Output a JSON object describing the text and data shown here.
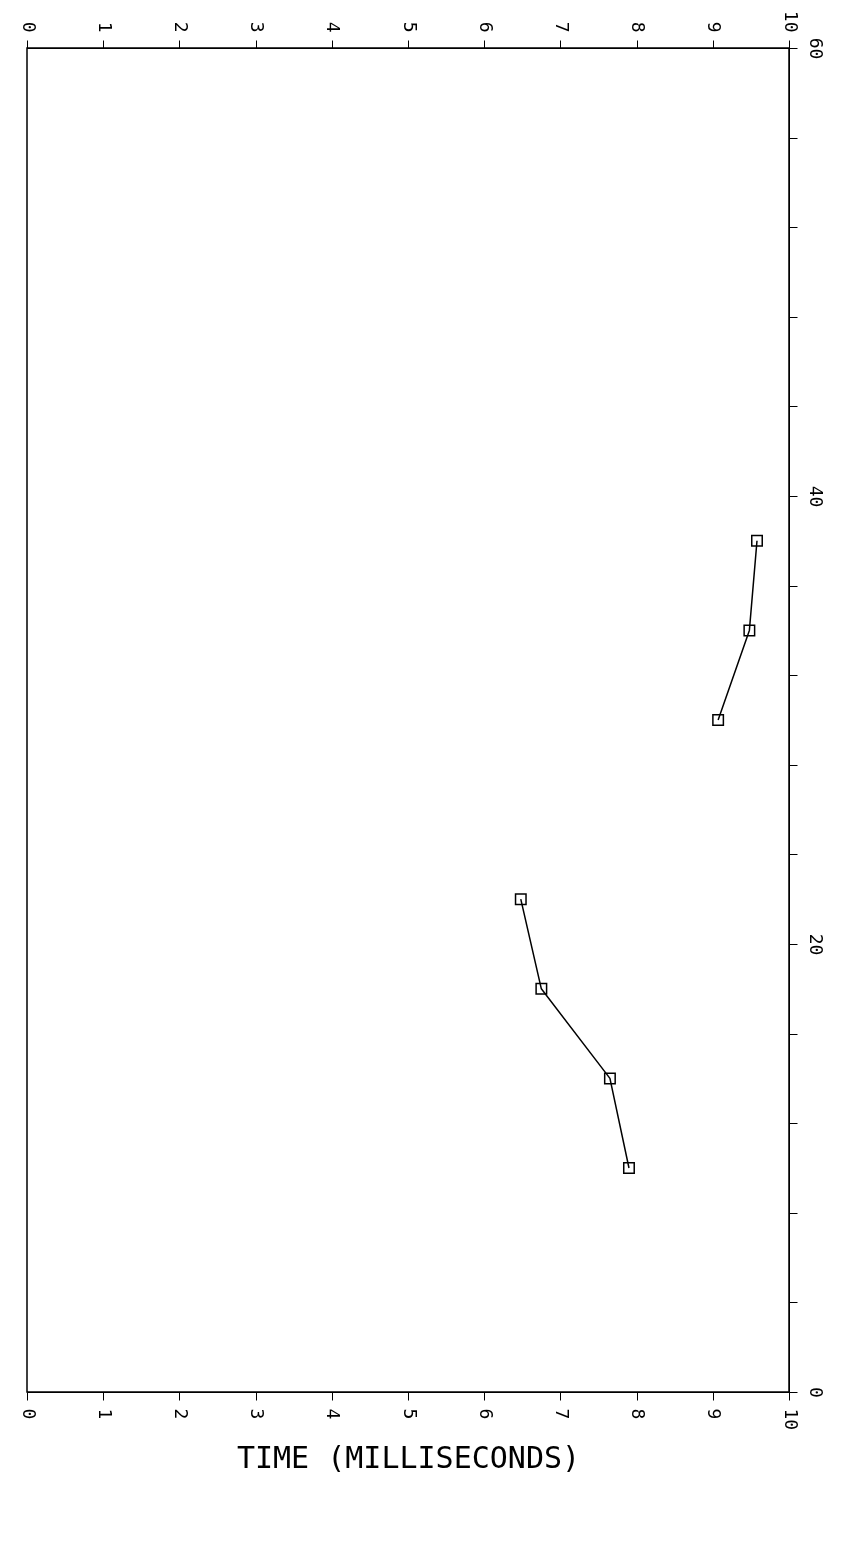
{
  "chart_data": {
    "type": "line",
    "xlabel": "TIME (MILLISECONDS)",
    "xlim": [
      0,
      10
    ],
    "xticks": [
      0,
      1,
      2,
      3,
      4,
      5,
      6,
      7,
      8,
      9,
      10
    ],
    "x2lim": [
      0,
      10
    ],
    "x2ticks": [
      0,
      1,
      2,
      3,
      4,
      5,
      6,
      7,
      8,
      9,
      10
    ],
    "ylim": [
      0,
      60
    ],
    "yticks": [
      0,
      {
        "value": 4,
        "label": null
      },
      {
        "value": 8,
        "label": null
      },
      {
        "value": 12,
        "label": null
      },
      {
        "value": 16,
        "label": null
      },
      20,
      {
        "value": 24,
        "label": null
      },
      {
        "value": 28,
        "label": null
      },
      {
        "value": 32,
        "label": null
      },
      {
        "value": 36,
        "label": null
      },
      40,
      {
        "value": 44,
        "label": null
      },
      {
        "value": 48,
        "label": null
      },
      {
        "value": 52,
        "label": null
      },
      {
        "value": 56,
        "label": null
      },
      60
    ],
    "series": [
      {
        "color": "#000000",
        "x": [
          7.9,
          7.65,
          6.75,
          6.48
        ],
        "values": [
          10,
          14,
          18,
          22
        ]
      },
      {
        "color": "#000000",
        "x": [
          9.07,
          9.48,
          9.58
        ],
        "values": [
          30,
          34,
          38
        ]
      }
    ],
    "marker": "square",
    "line_style": "solid",
    "grid": false,
    "legend": false
  }
}
